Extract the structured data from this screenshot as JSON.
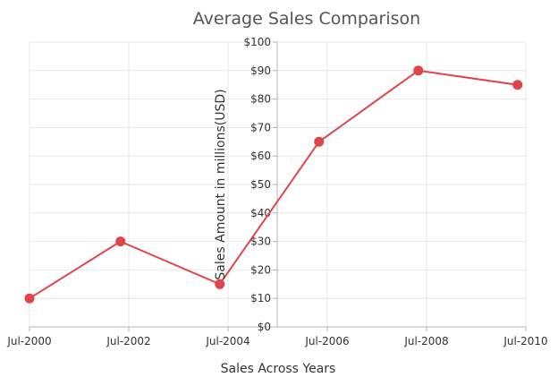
{
  "chart_data": {
    "type": "line",
    "title": "Average Sales Comparison",
    "xlabel": "Sales Across Years",
    "ylabel": "Sales Amount in millions(USD)",
    "x_ticks": [
      "Jul-2000",
      "Jul-2002",
      "Jul-2004",
      "Jul-2006",
      "Jul-2008",
      "Jul-2010"
    ],
    "y_ticks": [
      "$0",
      "$10",
      "$20",
      "$30",
      "$40",
      "$50",
      "$60",
      "$70",
      "$80",
      "$90",
      "$100"
    ],
    "xlim": [
      "2000-07",
      "2010-07"
    ],
    "ylim": [
      0,
      100
    ],
    "grid": true,
    "series": [
      {
        "color": "#e0454b",
        "points": [
          {
            "x": "2000-07",
            "y": 10
          },
          {
            "x": "2002-05",
            "y": 30
          },
          {
            "x": "2004-05",
            "y": 15
          },
          {
            "x": "2006-05",
            "y": 65
          },
          {
            "x": "2008-05",
            "y": 90
          },
          {
            "x": "2010-05",
            "y": 85
          }
        ]
      }
    ]
  }
}
